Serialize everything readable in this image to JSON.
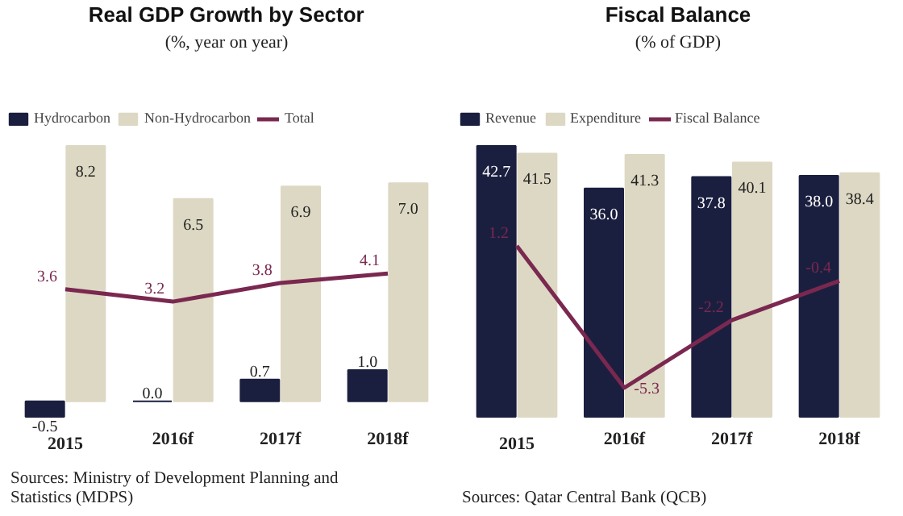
{
  "chart_data": [
    {
      "type": "bar",
      "title": "Real GDP Growth by Sector",
      "subtitle": "(%, year on year)",
      "categories": [
        "2015",
        "2016f",
        "2017f",
        "2018f"
      ],
      "series": [
        {
          "name": "Hydrocarbon",
          "color": "#1b1f3f",
          "values": [
            -0.5,
            0.0,
            0.7,
            1.0
          ],
          "value_labels": [
            "-0.5",
            "0.0",
            "0.7",
            "1.0"
          ]
        },
        {
          "name": "Non-Hydrocarbon",
          "color": "#ddd8c3",
          "values": [
            8.2,
            6.5,
            6.9,
            7.0
          ],
          "value_labels": [
            "8.2",
            "6.5",
            "6.9",
            "7.0"
          ]
        },
        {
          "name": "Total",
          "type": "line",
          "color": "#7a2850",
          "values": [
            3.6,
            3.2,
            3.8,
            4.1
          ],
          "value_labels": [
            "3.6",
            "3.2",
            "3.8",
            "4.1"
          ]
        }
      ],
      "legend": "top",
      "tick_labels": "x",
      "line_style": "solid",
      "annotations": [
        "Sources: Ministry of Development Planning and Statistics (MDPS)"
      ]
    },
    {
      "type": "bar",
      "title": "Fiscal Balance",
      "subtitle": "(% of GDP)",
      "categories": [
        "2015",
        "2016f",
        "2017f",
        "2018f"
      ],
      "series": [
        {
          "name": "Revenue",
          "color": "#1b1f3f",
          "values": [
            42.7,
            36.0,
            37.8,
            38.0
          ],
          "value_labels": [
            "42.7",
            "36.0",
            "37.8",
            "38.0"
          ]
        },
        {
          "name": "Expenditure",
          "color": "#ddd8c3",
          "values": [
            41.5,
            41.3,
            40.1,
            38.4
          ],
          "value_labels": [
            "41.5",
            "41.3",
            "40.1",
            "38.4"
          ]
        },
        {
          "name": "Fiscal Balance",
          "type": "line",
          "axis": "y2",
          "color": "#7a2850",
          "values": [
            1.2,
            -5.3,
            -2.2,
            -0.4
          ],
          "value_labels": [
            "1.2",
            "-5.3",
            "-2.2",
            "-0.4"
          ]
        }
      ],
      "legend": "top",
      "tick_labels": "x",
      "line_style": "solid",
      "annotations": [
        "Sources: Qatar Central Bank (QCB)"
      ]
    }
  ]
}
